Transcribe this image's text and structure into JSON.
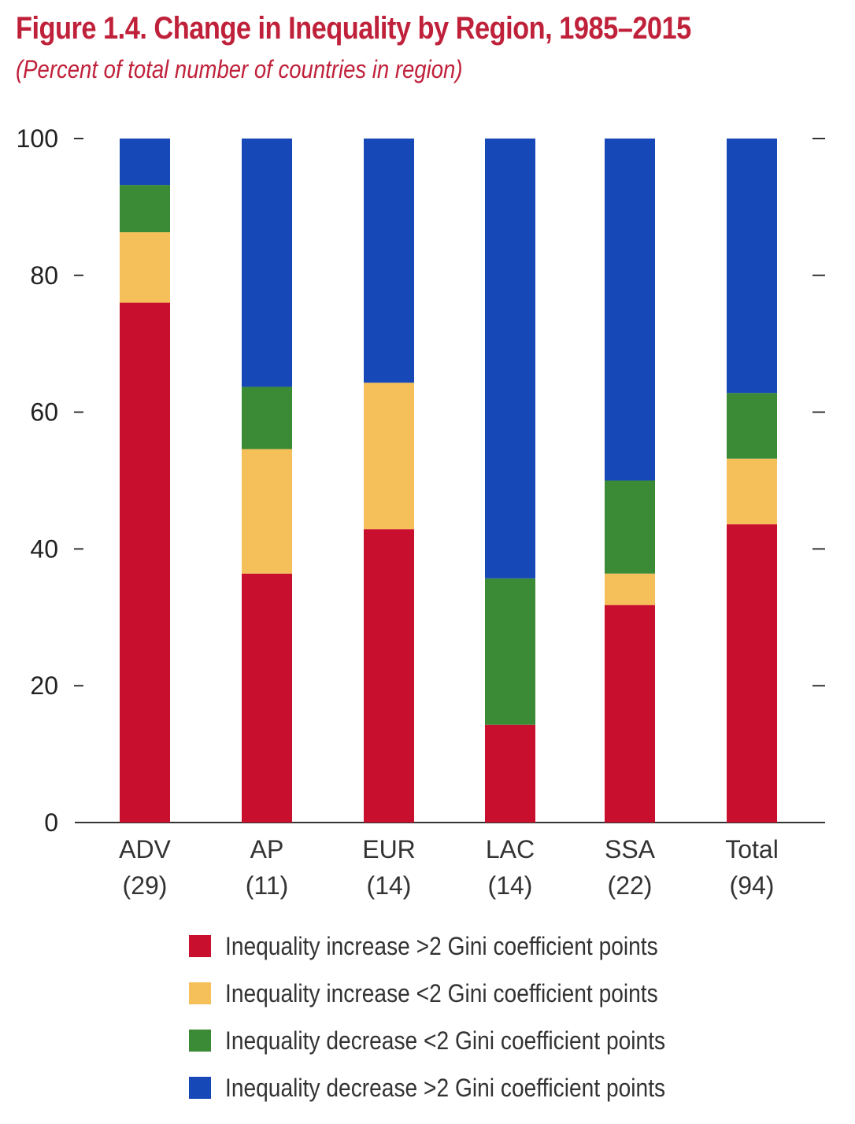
{
  "title": "Figure 1.4. Change in Inequality by Region, 1985–2015",
  "subtitle": "(Percent of total number of countries in region)",
  "colors": {
    "title": "#c0213a",
    "increase_large": "#c8102e",
    "increase_small": "#f5c05a",
    "decrease_small": "#3a8a36",
    "decrease_large": "#1748b8"
  },
  "chart_data": {
    "type": "bar",
    "stacked": true,
    "title": "Figure 1.4. Change in Inequality by Region, 1985–2015",
    "subtitle": "(Percent of total number of countries in region)",
    "xlabel": "",
    "ylabel": "",
    "ylim": [
      0,
      100
    ],
    "yticks": [
      "0",
      "20",
      "40",
      "60",
      "80",
      "100"
    ],
    "categories": [
      "ADV",
      "AP",
      "EUR",
      "LAC",
      "SSA",
      "Total"
    ],
    "category_counts": [
      "(29)",
      "(11)",
      "(14)",
      "(14)",
      "(22)",
      "(94)"
    ],
    "series": [
      {
        "name": "Inequality increase >2 Gini coefficient points",
        "color_key": "increase_large",
        "values": [
          76,
          36.4,
          42.9,
          14.3,
          31.8,
          43.6
        ]
      },
      {
        "name": "Inequality increase <2 Gini coefficient points",
        "color_key": "increase_small",
        "values": [
          10.3,
          18.2,
          21.4,
          0,
          4.6,
          9.6
        ]
      },
      {
        "name": "Inequality decrease <2 Gini coefficient points",
        "color_key": "decrease_small",
        "values": [
          6.9,
          9.1,
          0,
          21.4,
          13.6,
          9.6
        ]
      },
      {
        "name": "Inequality decrease >2 Gini coefficient points",
        "color_key": "decrease_large",
        "values": [
          6.8,
          36.3,
          35.7,
          64.3,
          50,
          37.2
        ]
      }
    ],
    "legend_position": "bottom"
  },
  "legend": {
    "items": [
      "Inequality increase >2 Gini coefficient points",
      "Inequality increase <2 Gini coefficient points",
      "Inequality decrease <2 Gini coefficient points",
      "Inequality decrease >2 Gini coefficient points"
    ]
  }
}
